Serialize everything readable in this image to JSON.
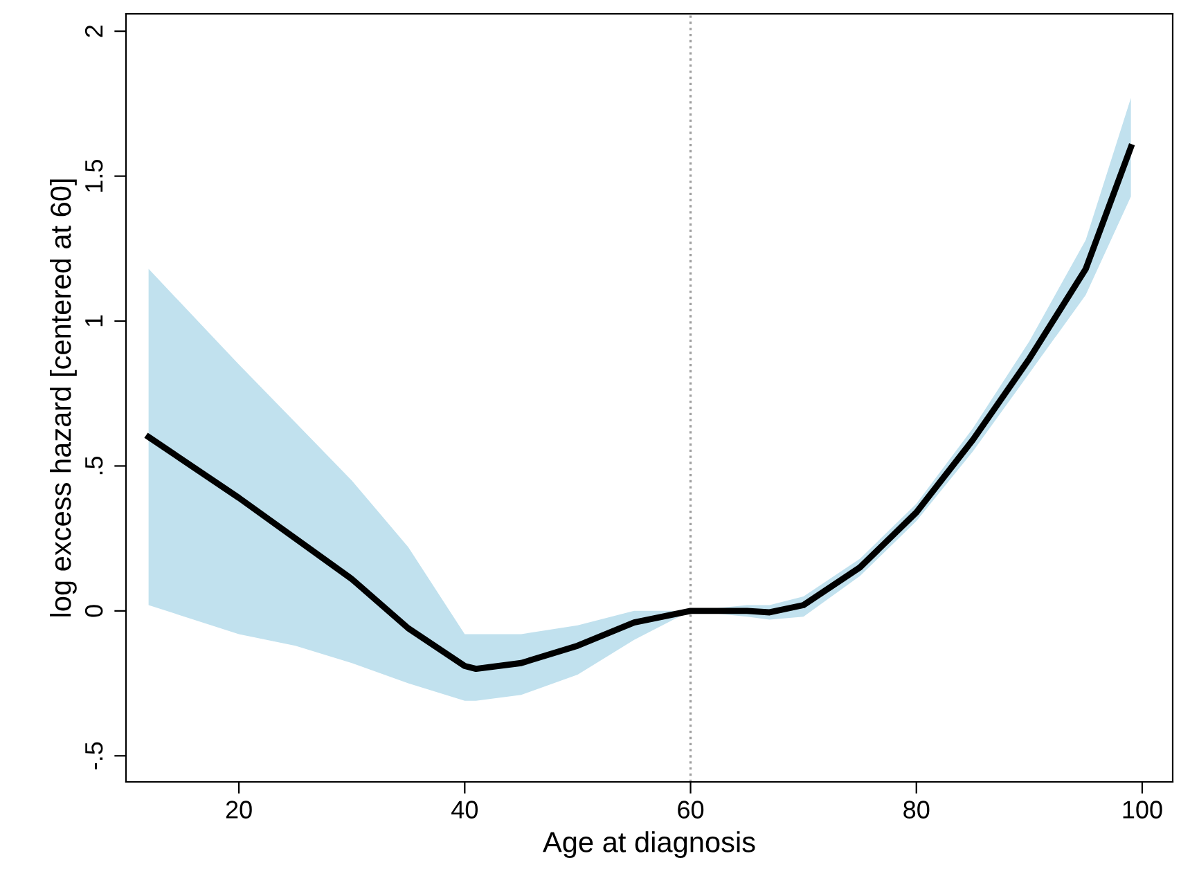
{
  "chart_data": {
    "type": "line",
    "xlabel": "Age at diagnosis",
    "ylabel": "log excess hazard [centered at 60]",
    "xlim": [
      10,
      102.7
    ],
    "ylim": [
      -0.59,
      2.06
    ],
    "xticks": [
      20,
      40,
      60,
      80,
      100
    ],
    "yticks": [
      {
        "value": -0.5,
        "label": "-.5"
      },
      {
        "value": 0,
        "label": "0"
      },
      {
        "value": 0.5,
        "label": ".5"
      },
      {
        "value": 1,
        "label": "1"
      },
      {
        "value": 1.5,
        "label": "1.5"
      },
      {
        "value": 2,
        "label": "2"
      }
    ],
    "series": [
      {
        "color": "#000000",
        "x": [
          12,
          20,
          25,
          30,
          35,
          40,
          41,
          45,
          50,
          55,
          60,
          65,
          67,
          70,
          75,
          80,
          85,
          90,
          95,
          99
        ],
        "values": [
          0.6,
          0.39,
          0.25,
          0.11,
          -0.06,
          -0.19,
          -0.2,
          -0.18,
          -0.12,
          -0.04,
          0,
          0,
          -0.005,
          0.02,
          0.15,
          0.34,
          0.59,
          0.87,
          1.18,
          1.6
        ],
        "lower": [
          0.02,
          -0.08,
          -0.12,
          -0.18,
          -0.25,
          -0.31,
          -0.31,
          -0.29,
          -0.22,
          -0.1,
          0,
          -0.02,
          -0.03,
          -0.02,
          0.12,
          0.31,
          0.55,
          0.82,
          1.09,
          1.43
        ],
        "upper": [
          1.18,
          0.85,
          0.65,
          0.45,
          0.22,
          -0.08,
          -0.08,
          -0.08,
          -0.05,
          0,
          0,
          0.02,
          0.02,
          0.05,
          0.18,
          0.37,
          0.63,
          0.93,
          1.28,
          1.77
        ]
      }
    ],
    "ref_lines": [
      {
        "axis": "x",
        "value": 60,
        "color": "#a0a0a0",
        "line_style": "dotted"
      }
    ],
    "grid": false,
    "legend": false,
    "marker": "none",
    "line_style": "solid"
  }
}
